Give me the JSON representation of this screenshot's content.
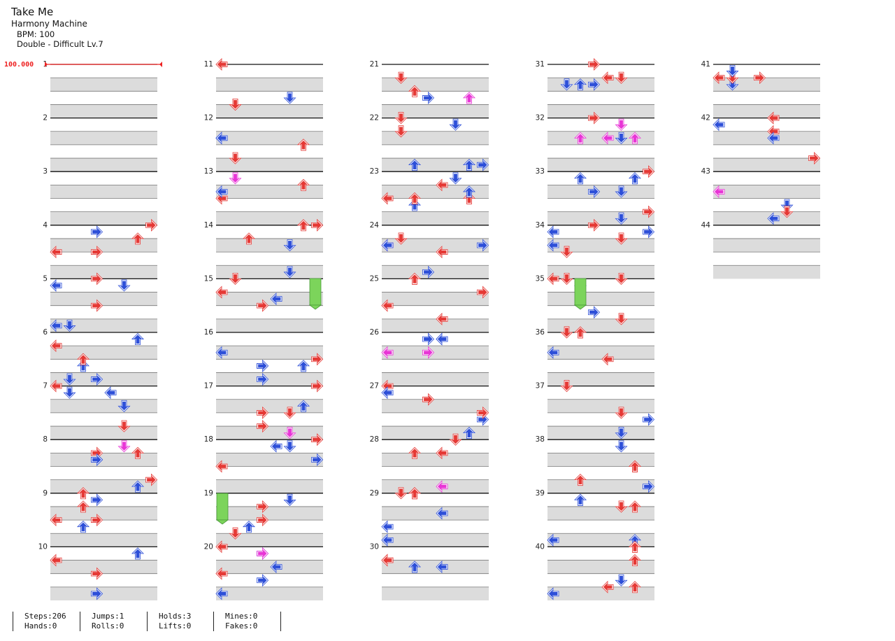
{
  "song": {
    "title": "Take Me",
    "artist": "Harmony Machine",
    "bpm_text": "BPM: 100",
    "chart_text": "Double - Difficult Lv.7"
  },
  "bpm_marker": "100.000",
  "colors": {
    "quarter": "#e53935",
    "eighth": "#2d4fd8",
    "sixteenth": "#e835d6",
    "hold": "#7cd45b",
    "lane": "#dcdcdc",
    "line": "#777777",
    "measure_line": "#111111"
  },
  "measure_count": 44,
  "notes_csv": "1|0|4|1;1|4|4|1;1|6|4|1;1|0|5|1;1|8|5|1;1|4|6|1;1|12|4|1;1|2|6|1;1|0|7|1;1|8|7|1;1|2|8|1;1|10|8|1;1|2|9|1;1|7|9|1;1|2|10|1;1|14|10|1;1|2|11|1;1|14|11|1;1|4|12|1;1|12|12|1;1|6|13|1;1|0|14|1;1|0|15|1;1|14|15|1;1|2|16|1;1|0|17|1;1|4|17|1;1|12|17|1;1|4|18|1;1|12|18|1;1|14|19|1;1|0|20|1;1|4|20|1;1|2|21|1;1|12|21|1;1|0|22|1;1|4|22|1;1|8|22|1;1|0|23|1;1|6|23|1;1|12|23|1;1|14|23|1;1|0|24|1;1|12|24|1;1|0|25|1;1|8|25|1;1|12|25|1;1|0|26|1;1|4|26|1;1|12|26|1;1|2|27|1;1|10|27|1;1|4|28|1;1|14|28|1;1|12|29|1;1|4|30|1;1|10|30|1;1|14|30|1;1|0|31|1;1|10|32|1;1|12|32|1;1|0|33|1;1|6|33|1;1|0|34|1;1|2|34|1;1|12|34|1;1|0|35|1;1|12|35|1;1|0|36|1;1|8|36|1;1|14|36|1;1|2|37|1;1|6|37|1;1|2|38|1;1|14|38|1;1|2|39|1;1|12|39|1;1|4|40|1;1|10|40|1;1|12|40|1;1|2|41|1;1|12|41|1;1|0|42|1;1|8|42|1;1|4|43|1;1|0|43|1;1|4|43|1;1|14|43|1;1|0|44|1"
}
